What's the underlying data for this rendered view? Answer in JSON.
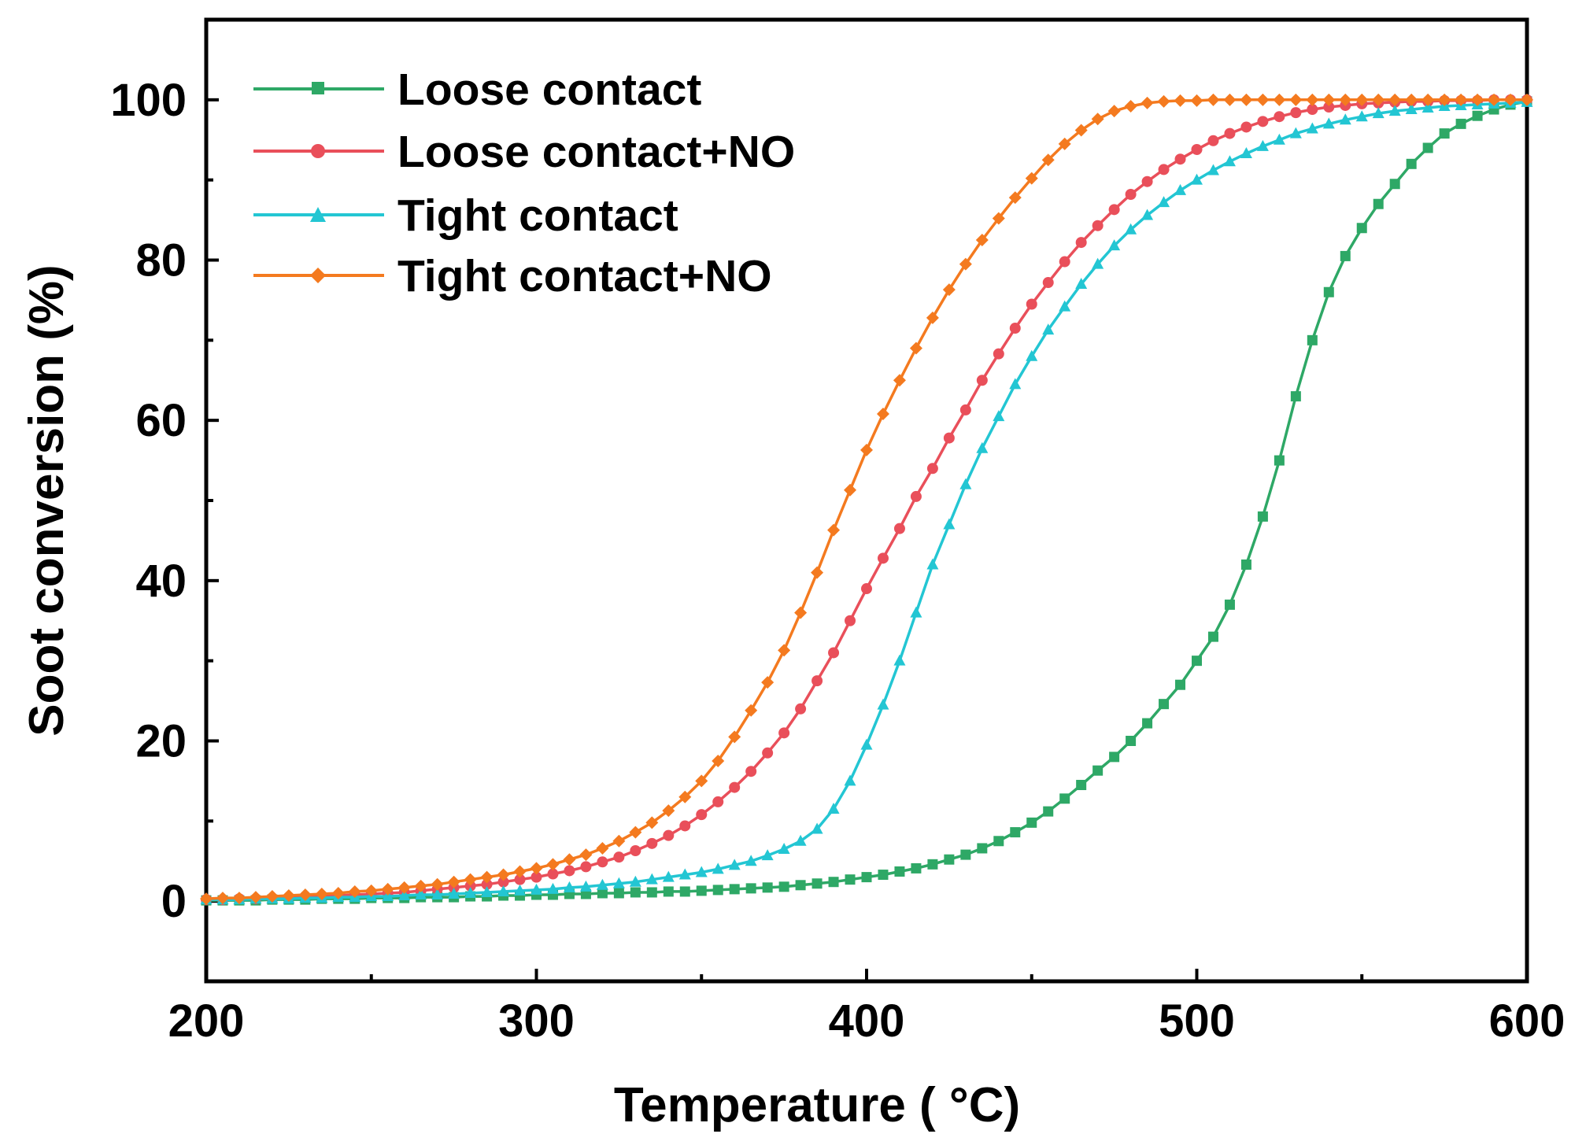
{
  "chart_data": {
    "type": "line",
    "title": "",
    "xlabel": "Temperature ( °C)",
    "ylabel": "Soot conversion (%)",
    "xlim": [
      200,
      600
    ],
    "ylim": [
      -10,
      110
    ],
    "xticks": [
      200,
      300,
      400,
      500,
      600
    ],
    "yticks": [
      0,
      20,
      40,
      60,
      80,
      100
    ],
    "grid": false,
    "legend_position": "top-left",
    "x": [
      200,
      205,
      210,
      215,
      220,
      225,
      230,
      235,
      240,
      245,
      250,
      255,
      260,
      265,
      270,
      275,
      280,
      285,
      290,
      295,
      300,
      305,
      310,
      315,
      320,
      325,
      330,
      335,
      340,
      345,
      350,
      355,
      360,
      365,
      370,
      375,
      380,
      385,
      390,
      395,
      400,
      405,
      410,
      415,
      420,
      425,
      430,
      435,
      440,
      445,
      450,
      455,
      460,
      465,
      470,
      475,
      480,
      485,
      490,
      495,
      500,
      505,
      510,
      515,
      520,
      525,
      530,
      535,
      540,
      545,
      550,
      555,
      560,
      565,
      570,
      575,
      580,
      585,
      590,
      595,
      600
    ],
    "series": [
      {
        "name": "Loose contact",
        "color": "#2ea866",
        "marker": "square",
        "values": [
          0.1,
          0.1,
          0.1,
          0.1,
          0.2,
          0.2,
          0.2,
          0.3,
          0.3,
          0.3,
          0.4,
          0.4,
          0.4,
          0.5,
          0.5,
          0.5,
          0.6,
          0.6,
          0.7,
          0.7,
          0.8,
          0.8,
          0.9,
          0.9,
          1.0,
          1.0,
          1.1,
          1.1,
          1.2,
          1.2,
          1.3,
          1.4,
          1.5,
          1.6,
          1.7,
          1.8,
          2.0,
          2.2,
          2.4,
          2.7,
          3.0,
          3.3,
          3.7,
          4.1,
          4.6,
          5.2,
          5.8,
          6.6,
          7.5,
          8.6,
          9.8,
          11.2,
          12.8,
          14.5,
          16.3,
          18.0,
          20.0,
          22.2,
          24.6,
          27.0,
          30.0,
          33.0,
          37.0,
          42.0,
          48.0,
          55.0,
          63.0,
          70.0,
          76.0,
          80.5,
          84.0,
          87.0,
          89.5,
          92.0,
          94.0,
          95.8,
          97.0,
          98.0,
          98.8,
          99.4,
          99.8
        ]
      },
      {
        "name": "Loose contact+NO",
        "color": "#e94f5a",
        "marker": "circle",
        "values": [
          0.2,
          0.2,
          0.3,
          0.3,
          0.4,
          0.5,
          0.6,
          0.6,
          0.7,
          0.8,
          0.9,
          1.0,
          1.1,
          1.3,
          1.5,
          1.7,
          1.9,
          2.1,
          2.4,
          2.7,
          3.0,
          3.4,
          3.8,
          4.3,
          4.9,
          5.5,
          6.3,
          7.2,
          8.2,
          9.4,
          10.8,
          12.4,
          14.2,
          16.2,
          18.5,
          21.0,
          24.0,
          27.5,
          31.0,
          35.0,
          39.0,
          42.8,
          46.5,
          50.5,
          54.0,
          57.8,
          61.3,
          65.0,
          68.3,
          71.5,
          74.5,
          77.2,
          79.8,
          82.2,
          84.3,
          86.3,
          88.2,
          89.8,
          91.3,
          92.6,
          93.8,
          94.9,
          95.8,
          96.6,
          97.3,
          97.9,
          98.4,
          98.8,
          99.1,
          99.3,
          99.5,
          99.6,
          99.7,
          99.8,
          99.8,
          99.9,
          99.9,
          99.9,
          100.0,
          100.0,
          100.0
        ]
      },
      {
        "name": "Tight contact",
        "color": "#23c6d3",
        "marker": "triangle",
        "values": [
          0.2,
          0.2,
          0.2,
          0.3,
          0.3,
          0.3,
          0.4,
          0.4,
          0.5,
          0.5,
          0.6,
          0.6,
          0.7,
          0.8,
          0.8,
          0.9,
          1.0,
          1.1,
          1.2,
          1.3,
          1.4,
          1.5,
          1.7,
          1.8,
          2.0,
          2.2,
          2.4,
          2.7,
          3.0,
          3.3,
          3.6,
          4.0,
          4.5,
          5.0,
          5.7,
          6.5,
          7.5,
          9.0,
          11.5,
          15.0,
          19.5,
          24.5,
          30.0,
          36.0,
          42.0,
          47.0,
          52.0,
          56.5,
          60.5,
          64.5,
          68.0,
          71.3,
          74.2,
          77.0,
          79.5,
          81.8,
          83.8,
          85.6,
          87.2,
          88.7,
          90.0,
          91.2,
          92.3,
          93.3,
          94.2,
          95.0,
          95.8,
          96.4,
          97.0,
          97.5,
          97.9,
          98.3,
          98.6,
          98.8,
          99.0,
          99.2,
          99.3,
          99.4,
          99.5,
          99.6,
          99.7
        ]
      },
      {
        "name": "Tight contact+NO",
        "color": "#f47a1f",
        "marker": "diamond",
        "values": [
          0.3,
          0.4,
          0.4,
          0.5,
          0.6,
          0.7,
          0.8,
          0.9,
          1.0,
          1.2,
          1.3,
          1.5,
          1.7,
          1.9,
          2.1,
          2.4,
          2.7,
          3.0,
          3.3,
          3.7,
          4.1,
          4.6,
          5.2,
          5.8,
          6.6,
          7.5,
          8.6,
          9.8,
          11.3,
          13.0,
          15.0,
          17.5,
          20.5,
          23.8,
          27.3,
          31.3,
          36.0,
          41.0,
          46.3,
          51.3,
          56.3,
          60.8,
          65.0,
          69.0,
          72.8,
          76.3,
          79.5,
          82.5,
          85.2,
          87.8,
          90.2,
          92.5,
          94.5,
          96.2,
          97.6,
          98.6,
          99.2,
          99.6,
          99.8,
          99.9,
          99.9,
          100.0,
          100.0,
          100.0,
          100.0,
          100.0,
          100.0,
          100.0,
          100.0,
          100.0,
          100.0,
          100.0,
          100.0,
          100.0,
          100.0,
          100.0,
          100.0,
          100.0,
          100.0,
          100.0,
          100.0
        ]
      }
    ]
  }
}
